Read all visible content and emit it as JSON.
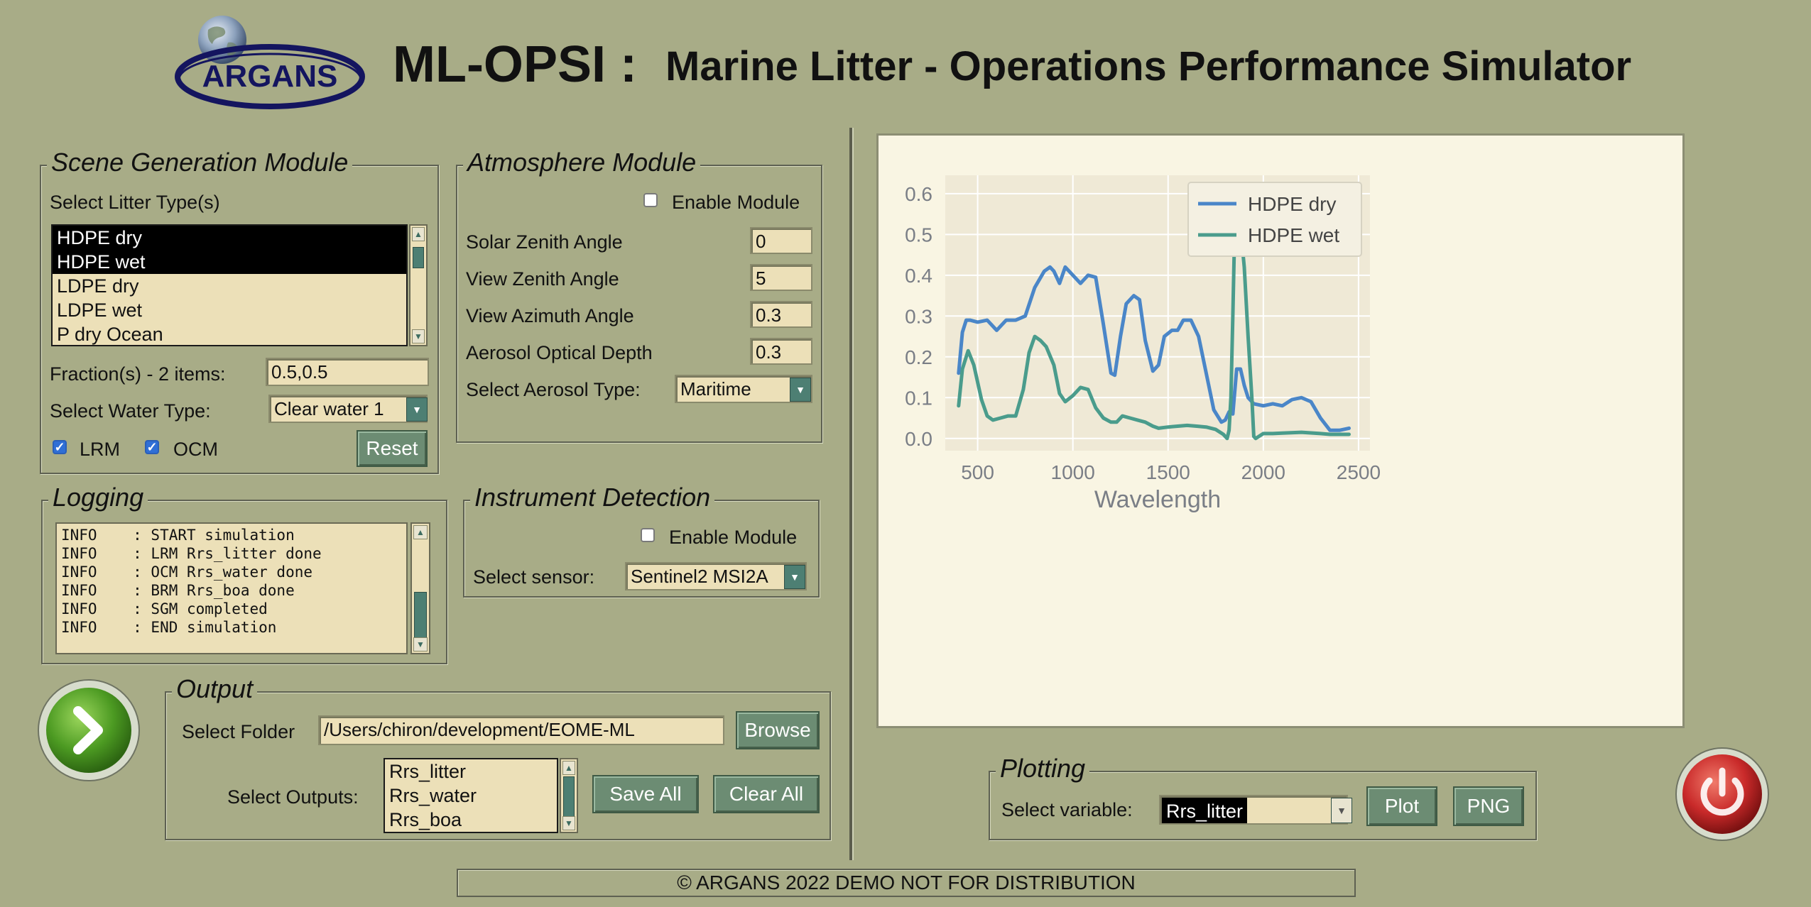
{
  "header": {
    "logo_text": "ARGANS",
    "title": "ML-OPSI :",
    "subtitle": "Marine Litter - Operations Performance Simulator"
  },
  "scene": {
    "group_title": "Scene Generation Module",
    "litter_label": "Select Litter Type(s)",
    "litter_items": [
      "HDPE dry",
      "HDPE wet",
      "LDPE dry",
      "LDPE wet",
      "P dry Ocean"
    ],
    "fraction_label": "Fraction(s) - 2 items:",
    "fraction_value": "0.5,0.5",
    "water_label": "Select Water Type:",
    "water_value": "Clear water 1",
    "lrm_label": "LRM",
    "ocm_label": "OCM",
    "reset_label": "Reset"
  },
  "atmosphere": {
    "group_title": "Atmosphere Module",
    "enable_label": "Enable Module",
    "rows": [
      {
        "label": "Solar Zenith Angle",
        "value": "0"
      },
      {
        "label": "View Zenith Angle",
        "value": "5"
      },
      {
        "label": "View Azimuth Angle",
        "value": "0.3"
      },
      {
        "label": "Aerosol Optical Depth",
        "value": "0.3"
      }
    ],
    "aerosol_label": "Select Aerosol Type:",
    "aerosol_value": "Maritime"
  },
  "logging": {
    "group_title": "Logging",
    "lines": [
      "INFO    : START simulation",
      "INFO    : LRM Rrs_litter done",
      "INFO    : OCM Rrs_water done",
      "INFO    : BRM Rrs_boa done",
      "INFO    : SGM completed",
      "INFO    : END simulation"
    ]
  },
  "instrument": {
    "group_title": "Instrument Detection",
    "enable_label": "Enable Module",
    "sensor_label": "Select sensor:",
    "sensor_value": "Sentinel2 MSI2A"
  },
  "output": {
    "group_title": "Output",
    "folder_label": "Select Folder",
    "folder_value": "/Users/chiron/development/EOME-ML",
    "browse_label": "Browse",
    "outputs_label": "Select Outputs:",
    "outputs_items": [
      "Rrs_litter",
      "Rrs_water",
      "Rrs_boa"
    ],
    "save_label": "Save All",
    "clear_label": "Clear All"
  },
  "plotting": {
    "group_title": "Plotting",
    "variable_label": "Select variable:",
    "variable_value": "Rrs_litter",
    "plot_label": "Plot",
    "png_label": "PNG"
  },
  "footer": {
    "text": "© ARGANS 2022 DEMO NOT FOR DISTRIBUTION"
  },
  "colors": {
    "window_bg": "#a8ac87",
    "button_bg": "#6c8c73",
    "field_bg": "#ece0b8",
    "series_dry": "#4a86c8",
    "series_wet": "#4a9c8c",
    "run_button": "#5aa62a",
    "power_button": "#c92a2a"
  },
  "icons": {
    "run": "chevron-right-icon",
    "power": "power-icon",
    "logo": "globe-icon"
  },
  "chart_data": {
    "type": "line",
    "title": "",
    "xlabel": "Wavelength",
    "ylabel": "",
    "xlim": [
      330,
      2560
    ],
    "ylim": [
      -0.03,
      0.645
    ],
    "xticks": [
      500,
      1000,
      1500,
      2000,
      2500
    ],
    "yticks": [
      0.0,
      0.1,
      0.2,
      0.3,
      0.4,
      0.5,
      0.6
    ],
    "grid": true,
    "legend": "top-right",
    "series": [
      {
        "name": "HDPE dry",
        "color": "#4a86c8",
        "x": [
          400,
          420,
          440,
          460,
          500,
          550,
          600,
          650,
          700,
          750,
          800,
          850,
          880,
          900,
          930,
          960,
          1000,
          1040,
          1080,
          1120,
          1160,
          1200,
          1220,
          1250,
          1280,
          1320,
          1350,
          1380,
          1420,
          1450,
          1480,
          1520,
          1550,
          1580,
          1620,
          1660,
          1700,
          1740,
          1780,
          1800,
          1820,
          1840,
          1860,
          1880,
          1900,
          1920,
          1950,
          2000,
          2050,
          2100,
          2150,
          2200,
          2250,
          2300,
          2350,
          2400,
          2450
        ],
        "y": [
          0.16,
          0.26,
          0.29,
          0.29,
          0.285,
          0.29,
          0.265,
          0.29,
          0.29,
          0.3,
          0.37,
          0.41,
          0.42,
          0.41,
          0.38,
          0.42,
          0.4,
          0.38,
          0.4,
          0.395,
          0.28,
          0.16,
          0.155,
          0.25,
          0.33,
          0.35,
          0.34,
          0.24,
          0.165,
          0.18,
          0.25,
          0.265,
          0.265,
          0.29,
          0.29,
          0.25,
          0.16,
          0.07,
          0.04,
          0.045,
          0.065,
          0.06,
          0.17,
          0.17,
          0.13,
          0.1,
          0.085,
          0.08,
          0.085,
          0.08,
          0.095,
          0.1,
          0.09,
          0.05,
          0.02,
          0.02,
          0.025
        ]
      },
      {
        "name": "HDPE wet",
        "color": "#4a9c8c",
        "x": [
          400,
          420,
          450,
          480,
          520,
          550,
          580,
          620,
          660,
          700,
          740,
          770,
          800,
          830,
          860,
          900,
          930,
          960,
          1000,
          1040,
          1080,
          1120,
          1160,
          1200,
          1230,
          1260,
          1300,
          1340,
          1380,
          1420,
          1450,
          1500,
          1550,
          1600,
          1650,
          1700,
          1750,
          1790,
          1800,
          1810,
          1820,
          1830,
          1840,
          1850,
          1860,
          1870,
          1880,
          1890,
          1900,
          1920,
          1940,
          1950,
          1960,
          2000,
          2050,
          2100,
          2200,
          2300,
          2350,
          2400,
          2450
        ],
        "y": [
          0.08,
          0.17,
          0.215,
          0.18,
          0.095,
          0.055,
          0.045,
          0.05,
          0.055,
          0.055,
          0.12,
          0.21,
          0.25,
          0.24,
          0.225,
          0.18,
          0.11,
          0.09,
          0.105,
          0.125,
          0.12,
          0.075,
          0.05,
          0.04,
          0.04,
          0.055,
          0.05,
          0.045,
          0.04,
          0.03,
          0.025,
          0.028,
          0.03,
          0.032,
          0.03,
          0.028,
          0.022,
          0.01,
          0.005,
          0.0,
          0.02,
          0.1,
          0.3,
          0.52,
          0.6,
          0.61,
          0.57,
          0.47,
          0.42,
          0.25,
          0.1,
          0.005,
          0.0,
          0.012,
          0.012,
          0.013,
          0.015,
          0.012,
          0.01,
          0.01,
          0.01
        ]
      }
    ]
  }
}
